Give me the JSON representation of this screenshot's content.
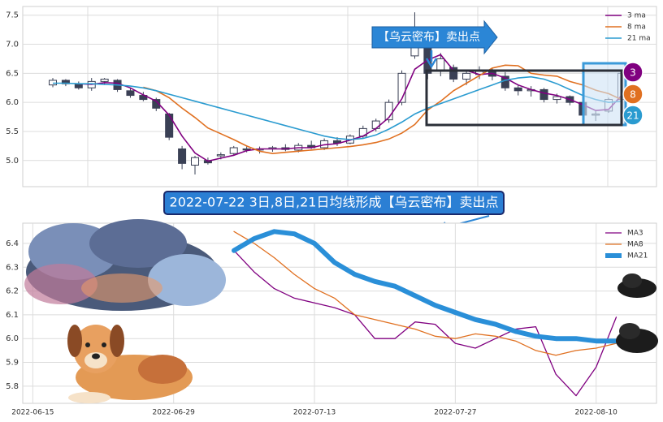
{
  "chart_data": [
    {
      "type": "candlestick",
      "open": [
        6.3,
        6.38,
        6.32,
        6.25,
        6.36,
        6.38,
        6.2,
        6.12,
        6.05,
        5.8,
        5.2,
        4.92,
        5.0,
        5.08,
        5.12,
        5.2,
        5.18,
        5.2,
        5.22,
        5.18,
        5.26,
        5.22,
        5.34,
        5.3,
        5.42,
        5.55,
        5.7,
        6.0,
        6.8,
        7.0,
        6.55,
        6.6,
        6.4,
        6.48,
        6.55,
        6.45,
        6.25,
        6.2,
        6.22,
        6.05,
        6.1,
        6.0,
        5.78,
        5.85,
        6.05
      ],
      "high": [
        6.42,
        6.4,
        6.36,
        6.42,
        6.42,
        6.4,
        6.25,
        6.18,
        6.08,
        5.82,
        5.25,
        5.08,
        5.05,
        5.14,
        5.25,
        5.26,
        5.24,
        5.25,
        5.28,
        5.3,
        5.34,
        5.38,
        5.4,
        5.45,
        5.6,
        5.72,
        6.05,
        6.55,
        7.55,
        7.05,
        6.85,
        6.65,
        6.55,
        6.62,
        6.6,
        6.52,
        6.3,
        6.28,
        6.25,
        6.15,
        6.12,
        6.05,
        5.85,
        6.08,
        6.55
      ],
      "low": [
        6.26,
        6.28,
        6.22,
        6.2,
        6.3,
        6.18,
        6.08,
        6.02,
        5.85,
        5.35,
        4.85,
        4.76,
        4.93,
        5.02,
        5.08,
        5.14,
        5.12,
        5.15,
        5.16,
        5.14,
        5.2,
        5.18,
        5.25,
        5.28,
        5.38,
        5.5,
        5.65,
        5.95,
        6.75,
        6.4,
        6.45,
        6.35,
        6.3,
        6.4,
        6.38,
        6.2,
        6.12,
        6.1,
        6.0,
        5.98,
        5.95,
        5.7,
        5.68,
        5.82,
        6.0
      ],
      "close": [
        6.38,
        6.32,
        6.25,
        6.36,
        6.4,
        6.22,
        6.12,
        6.05,
        5.9,
        5.4,
        4.95,
        5.05,
        4.96,
        5.1,
        5.22,
        5.18,
        5.2,
        5.22,
        5.19,
        5.26,
        5.22,
        5.34,
        5.3,
        5.42,
        5.55,
        5.68,
        6.0,
        6.5,
        7.2,
        6.5,
        6.75,
        6.4,
        6.5,
        6.55,
        6.45,
        6.25,
        6.2,
        6.22,
        6.05,
        6.1,
        6.0,
        5.78,
        5.8,
        6.05,
        6.5
      ],
      "series": [
        {
          "name": "3 ma",
          "color": "#800080",
          "values": [
            null,
            null,
            6.32,
            6.31,
            6.34,
            6.33,
            6.25,
            6.13,
            6.02,
            5.78,
            5.42,
            5.13,
            4.99,
            5.04,
            5.09,
            5.17,
            5.2,
            5.2,
            5.2,
            5.22,
            5.22,
            5.27,
            5.29,
            5.35,
            5.42,
            5.55,
            5.74,
            6.06,
            6.57,
            6.73,
            6.82,
            6.55,
            6.55,
            6.48,
            6.5,
            6.42,
            6.3,
            6.22,
            6.16,
            6.12,
            6.05,
            5.96,
            5.86,
            5.88,
            6.12
          ]
        },
        {
          "name": "8 ma",
          "color": "#e07020",
          "values": [
            null,
            null,
            null,
            null,
            null,
            null,
            null,
            6.26,
            6.2,
            6.08,
            5.9,
            5.74,
            5.56,
            5.46,
            5.36,
            5.25,
            5.16,
            5.12,
            5.14,
            5.16,
            5.18,
            5.2,
            5.22,
            5.24,
            5.27,
            5.31,
            5.37,
            5.47,
            5.62,
            5.87,
            6.02,
            6.2,
            6.33,
            6.46,
            6.59,
            6.64,
            6.63,
            6.5,
            6.47,
            6.45,
            6.36,
            6.3,
            6.21,
            6.15,
            6.05
          ]
        },
        {
          "name": "21 ma",
          "color": "#2a9bd0",
          "values": [
            6.33,
            6.33,
            6.32,
            6.32,
            6.31,
            6.3,
            6.28,
            6.25,
            6.2,
            6.14,
            6.08,
            6.02,
            5.96,
            5.9,
            5.84,
            5.78,
            5.72,
            5.66,
            5.6,
            5.54,
            5.48,
            5.42,
            5.38,
            5.36,
            5.38,
            5.44,
            5.54,
            5.66,
            5.8,
            5.9,
            5.98,
            6.06,
            6.14,
            6.22,
            6.3,
            6.38,
            6.42,
            6.44,
            6.4,
            6.32,
            6.22,
            6.12,
            6.05,
            6.0,
            6.02
          ]
        }
      ],
      "ylim": [
        4.55,
        7.65
      ],
      "yticks": [
        {
          "value": 5,
          "label": "5.0"
        },
        5.5,
        {
          "value": 6,
          "label": "6.0"
        },
        6.5,
        {
          "value": 7,
          "label": "7.0"
        },
        7.5
      ],
      "grid": true,
      "annotation": "【乌云密布】卖出点",
      "badges": [
        "3",
        "8",
        "21"
      ]
    },
    {
      "type": "line",
      "title": "2022-07-22 3日,8日,21日均线形成【乌云密布】卖出点",
      "x": [
        "2022-07-05",
        "2022-07-07",
        "2022-07-09",
        "2022-07-11",
        "2022-07-13",
        "2022-07-15",
        "2022-07-17",
        "2022-07-19",
        "2022-07-21",
        "2022-07-23",
        "2022-07-25",
        "2022-07-27",
        "2022-07-29",
        "2022-07-31",
        "2022-08-02",
        "2022-08-04",
        "2022-08-06",
        "2022-08-08",
        "2022-08-10",
        "2022-08-12"
      ],
      "series": [
        {
          "name": "MA3",
          "color": "#800080",
          "width": 1.3,
          "values": [
            6.37,
            6.28,
            6.21,
            6.17,
            6.15,
            6.13,
            6.1,
            6.0,
            6.0,
            6.07,
            6.06,
            5.98,
            5.96,
            6.0,
            6.04,
            6.05,
            5.85,
            5.76,
            5.88,
            6.09
          ]
        },
        {
          "name": "MA8",
          "color": "#e07020",
          "width": 1.3,
          "values": [
            6.45,
            6.4,
            6.34,
            6.27,
            6.21,
            6.17,
            6.1,
            6.08,
            6.06,
            6.04,
            6.01,
            6.0,
            6.02,
            6.01,
            5.99,
            5.95,
            5.93,
            5.95,
            5.96,
            5.98
          ]
        },
        {
          "name": "MA21",
          "color": "#2a8fd8",
          "width": 6,
          "values": [
            6.37,
            6.42,
            6.45,
            6.44,
            6.4,
            6.32,
            6.27,
            6.24,
            6.22,
            6.18,
            6.14,
            6.11,
            6.08,
            6.06,
            6.03,
            6.01,
            6.0,
            6.0,
            5.99,
            5.99
          ]
        }
      ],
      "xlim": [
        "2022-06-14",
        "2022-08-16"
      ],
      "xticks": [
        "2022-06-15",
        "2022-06-29",
        "2022-07-13",
        "2022-07-27",
        "2022-08-10"
      ],
      "ylim": [
        5.728,
        6.485
      ],
      "yticks": [
        5.8,
        5.9,
        {
          "value": 6,
          "label": "6.0"
        },
        6.1,
        6.2,
        6.3,
        6.4
      ],
      "grid": true
    }
  ]
}
